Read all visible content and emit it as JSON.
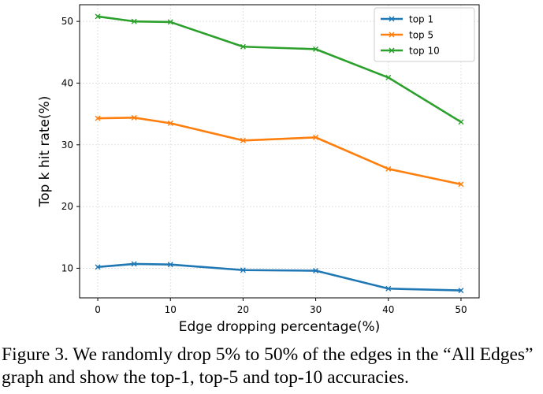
{
  "chart_data": {
    "type": "line",
    "xlabel": "Edge dropping percentage(%)",
    "ylabel": "Top k hit rate(%)",
    "x": [
      0,
      5,
      10,
      20,
      30,
      40,
      50
    ],
    "xticks": [
      0,
      10,
      20,
      30,
      40,
      50
    ],
    "yticks": [
      10,
      20,
      30,
      40,
      50
    ],
    "xlim": [
      -2.5,
      52.5
    ],
    "ylim": [
      5.2,
      52.7
    ],
    "grid": true,
    "legend_position": "top-right",
    "series": [
      {
        "name": "top 1",
        "color": "#1f77b4",
        "values": [
          10.2,
          10.7,
          10.6,
          9.7,
          9.6,
          6.7,
          6.4
        ]
      },
      {
        "name": "top 5",
        "color": "#ff7f0e",
        "values": [
          34.3,
          34.4,
          33.5,
          30.7,
          31.2,
          26.1,
          23.6
        ]
      },
      {
        "name": "top 10",
        "color": "#2ca02c",
        "values": [
          50.8,
          50.0,
          49.9,
          45.9,
          45.5,
          40.9,
          33.7
        ]
      }
    ]
  },
  "caption": "Figure 3. We randomly drop 5% to 50% of the edges in the “All Edges” graph and show the top-1, top-5 and top-10 accuracies."
}
